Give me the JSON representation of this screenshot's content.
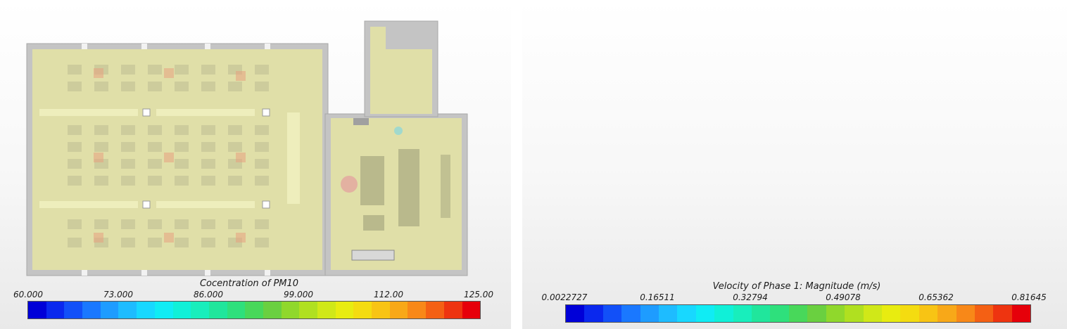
{
  "panels": [
    {
      "legend_title": "Cocentration of PM10",
      "ticks": [
        "60.000",
        "73.000",
        "86.000",
        "99.000",
        "112.00",
        "125.00"
      ],
      "floor_color": "#e0dfa8",
      "hotspot_color": "#e8a080"
    },
    {
      "legend_title": "Velocity of Phase 1: Magnitude (m/s)",
      "ticks": [
        "0.0022727",
        "0.16511",
        "0.32794",
        "0.49078",
        "0.65362",
        "0.81645"
      ],
      "floor_color": "#aabfe0",
      "hotspot_color": "#e06030"
    }
  ],
  "colorbar_colors": [
    "#0000d8",
    "#0a28ee",
    "#1250f8",
    "#1a78ff",
    "#1e9cff",
    "#1ebcff",
    "#18d8ff",
    "#10ecf4",
    "#10f0d8",
    "#18eebc",
    "#20e69c",
    "#2ee07c",
    "#48d85a",
    "#6ad040",
    "#90d82c",
    "#b0e020",
    "#d0e818",
    "#e8ec10",
    "#f4dc10",
    "#f8c414",
    "#f8a818",
    "#f88818",
    "#f46014",
    "#ee3410",
    "#e6000a"
  ]
}
